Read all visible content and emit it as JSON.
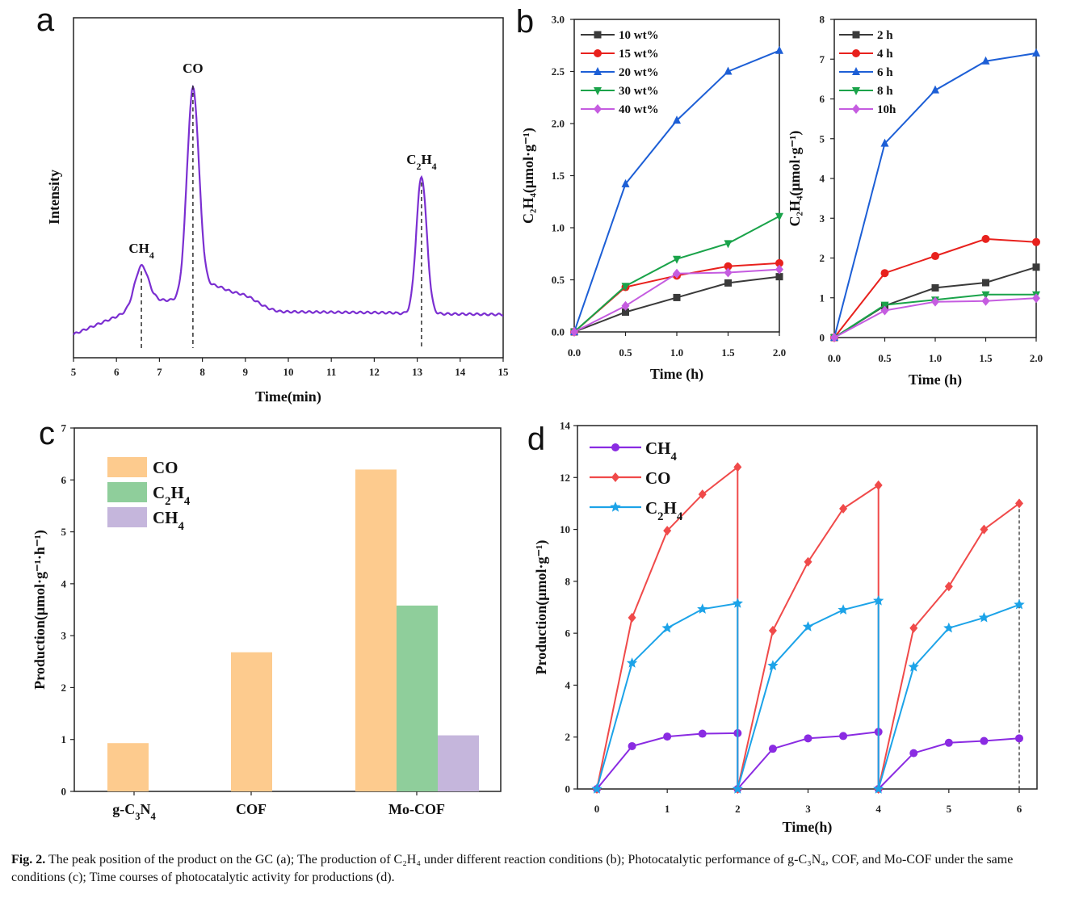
{
  "caption": {
    "label": "Fig. 2.",
    "text": "The peak position of the product on the GC (a); The production of C₂H₄ under different reaction conditions (b); Photocatalytic performance of g-C₃N₄, COF, and Mo-COF under the same conditions (c); Time courses of photocatalytic activity for productions (d)."
  },
  "chart_data": [
    {
      "id": "a",
      "panel_label": "a",
      "type": "line",
      "xlabel": "Time(min)",
      "ylabel": "Intensity",
      "xlim": [
        5,
        15
      ],
      "xticks": [
        5,
        6,
        7,
        8,
        9,
        10,
        11,
        12,
        13,
        14,
        15
      ],
      "color": "#7b2fd1",
      "peaks": [
        {
          "label": "CH",
          "sub": "4",
          "x": 6.58
        },
        {
          "label": "CO",
          "sub": "",
          "x": 7.78
        },
        {
          "label": "C",
          "sub": "2",
          "label2": "H",
          "sub2": "4",
          "x": 13.1
        }
      ]
    },
    {
      "id": "b1",
      "panel_label": "b",
      "type": "line",
      "xlabel": "Time (h)",
      "ylabel": "C₂H₄(μmol·g⁻¹)",
      "xlim": [
        0,
        2
      ],
      "ylim": [
        0,
        3
      ],
      "xticks": [
        "0.0",
        "0.5",
        "1.0",
        "1.5",
        "2.0"
      ],
      "yticks": [
        "0.0",
        "0.5",
        "1.0",
        "1.5",
        "2.0",
        "2.5",
        "3.0"
      ],
      "x": [
        0,
        0.5,
        1.0,
        1.5,
        2.0
      ],
      "series": [
        {
          "name": "10 wt%",
          "color": "#3a3a3a",
          "marker": "square",
          "values": [
            0,
            0.19,
            0.33,
            0.47,
            0.53
          ]
        },
        {
          "name": "15 wt%",
          "color": "#e8211d",
          "marker": "circle",
          "values": [
            0,
            0.43,
            0.54,
            0.63,
            0.66
          ]
        },
        {
          "name": "20 wt%",
          "color": "#1d5fd6",
          "marker": "triangle-up",
          "values": [
            0,
            1.42,
            2.03,
            2.5,
            2.7
          ]
        },
        {
          "name": "30 wt%",
          "color": "#1aa34a",
          "marker": "triangle-down",
          "values": [
            0,
            0.44,
            0.7,
            0.85,
            1.11
          ]
        },
        {
          "name": "40 wt%",
          "color": "#c55ce0",
          "marker": "diamond",
          "values": [
            0,
            0.25,
            0.56,
            0.57,
            0.6
          ]
        }
      ]
    },
    {
      "id": "b2",
      "type": "line",
      "xlabel": "Time (h)",
      "ylabel": "C₂H₄(μmol·g⁻¹)",
      "xlim": [
        0,
        2
      ],
      "ylim": [
        0,
        8
      ],
      "xticks": [
        "0.0",
        "0.5",
        "1.0",
        "1.5",
        "2.0"
      ],
      "yticks": [
        "0",
        "1",
        "2",
        "3",
        "4",
        "5",
        "6",
        "7",
        "8"
      ],
      "x": [
        0,
        0.5,
        1.0,
        1.5,
        2.0
      ],
      "series": [
        {
          "name": "2 h",
          "color": "#3a3a3a",
          "marker": "square",
          "values": [
            0,
            0.8,
            1.25,
            1.38,
            1.77
          ]
        },
        {
          "name": "4 h",
          "color": "#e8211d",
          "marker": "circle",
          "values": [
            0,
            1.62,
            2.05,
            2.48,
            2.4
          ]
        },
        {
          "name": "6 h",
          "color": "#1d5fd6",
          "marker": "triangle-up",
          "values": [
            0,
            4.88,
            6.22,
            6.95,
            7.15
          ]
        },
        {
          "name": "8 h",
          "color": "#1aa34a",
          "marker": "triangle-down",
          "values": [
            0,
            0.82,
            0.95,
            1.08,
            1.08
          ]
        },
        {
          "name": "10h",
          "color": "#c55ce0",
          "marker": "diamond",
          "values": [
            0,
            0.68,
            0.9,
            0.92,
            0.99
          ]
        }
      ]
    },
    {
      "id": "c",
      "panel_label": "c",
      "type": "bar",
      "ylabel": "Production(μmol·g⁻¹·h⁻¹)",
      "ylim": [
        0,
        7
      ],
      "yticks": [
        "0",
        "1",
        "2",
        "3",
        "4",
        "5",
        "6",
        "7"
      ],
      "categories": [
        {
          "label": "g-C",
          "sub": "3",
          "label2": "N",
          "sub2": "4"
        },
        {
          "label": "COF",
          "sub": "",
          "label2": "",
          "sub2": ""
        },
        {
          "label": "Mo-COF",
          "sub": "",
          "label2": "",
          "sub2": ""
        }
      ],
      "series": [
        {
          "name": "CO",
          "sub": "",
          "name2": "",
          "sub2": "",
          "color": "#fdcb8e",
          "values": [
            0.93,
            2.68,
            6.2
          ]
        },
        {
          "name": "C",
          "sub": "2",
          "name2": "H",
          "sub2": "4",
          "color": "#8fce9b",
          "values": [
            null,
            null,
            3.58
          ]
        },
        {
          "name": "CH",
          "sub": "4",
          "name2": "",
          "sub2": "",
          "color": "#c5b6dc",
          "values": [
            null,
            null,
            1.08
          ]
        }
      ]
    },
    {
      "id": "d",
      "panel_label": "d",
      "type": "line",
      "xlabel": "Time(h)",
      "ylabel": "Production(μmol·g⁻¹)",
      "xlim": [
        0,
        6
      ],
      "ylim": [
        0,
        14
      ],
      "xticks": [
        "0",
        "1",
        "2",
        "3",
        "4",
        "5",
        "6"
      ],
      "yticks": [
        "0",
        "2",
        "4",
        "6",
        "8",
        "10",
        "12",
        "14"
      ],
      "cycle_breaks": [
        2,
        4,
        6
      ],
      "series": [
        {
          "name": "CH",
          "sub": "4",
          "name2": "",
          "sub2": "",
          "color": "#8a2be2",
          "marker": "circle",
          "x": [
            0,
            0.5,
            1,
            1.5,
            2,
            2,
            2.5,
            3,
            3.5,
            4,
            4,
            4.5,
            5,
            5.5,
            6
          ],
          "values": [
            0,
            1.65,
            2.02,
            2.13,
            2.15,
            0,
            1.55,
            1.95,
            2.04,
            2.2,
            0,
            1.38,
            1.78,
            1.85,
            1.95
          ]
        },
        {
          "name": "CO",
          "sub": "",
          "name2": "",
          "sub2": "",
          "color": "#f04a4a",
          "marker": "diamond",
          "x": [
            0,
            0.5,
            1,
            1.5,
            2,
            2,
            2.5,
            3,
            3.5,
            4,
            4,
            4.5,
            5,
            5.5,
            6
          ],
          "values": [
            0,
            6.6,
            9.95,
            11.35,
            12.4,
            0,
            6.1,
            8.75,
            10.8,
            11.7,
            0,
            6.2,
            7.8,
            10.0,
            11.0
          ]
        },
        {
          "name": "C",
          "sub": "2",
          "name2": "H",
          "sub2": "4",
          "color": "#1ca3e8",
          "marker": "star",
          "x": [
            0,
            0.5,
            1,
            1.5,
            2,
            2,
            2.5,
            3,
            3.5,
            4,
            4,
            4.5,
            5,
            5.5,
            6
          ],
          "values": [
            0,
            4.85,
            6.2,
            6.93,
            7.15,
            0,
            4.75,
            6.25,
            6.9,
            7.25,
            0,
            4.7,
            6.2,
            6.6,
            7.1
          ]
        }
      ]
    }
  ]
}
